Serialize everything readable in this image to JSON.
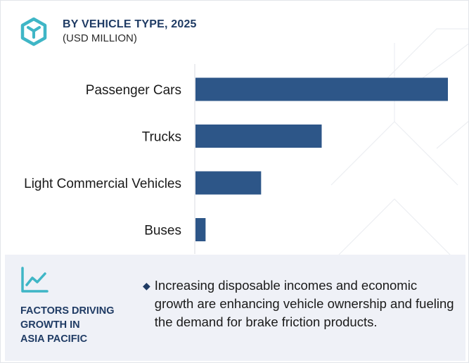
{
  "header": {
    "title": "BY VEHICLE TYPE, 2025",
    "subtitle": "(USD MILLION)",
    "icon": "hexagon-cube-icon"
  },
  "colors": {
    "bar": "#2d5688",
    "accent": "#3fb6c6",
    "title": "#1f3b64",
    "panel": "#eff1f7"
  },
  "chart_data": {
    "type": "bar",
    "orientation": "horizontal",
    "title": "BY VEHICLE TYPE, 2025",
    "subtitle": "(USD MILLION)",
    "categories": [
      "Passenger Cars",
      "Trucks",
      "Light Commercial Vehicles",
      "Buses"
    ],
    "values": [
      100,
      50,
      26,
      4
    ],
    "xlim": [
      0,
      100
    ],
    "grid": false,
    "legend": "none"
  },
  "factors": {
    "icon": "trend-line-icon",
    "title_lines": [
      "FACTORS DRIVING",
      "GROWTH IN",
      "ASIA PACIFIC"
    ],
    "bullets": [
      "Increasing disposable incomes and economic growth are enhancing vehicle ownership and fueling the demand for brake friction products."
    ]
  }
}
